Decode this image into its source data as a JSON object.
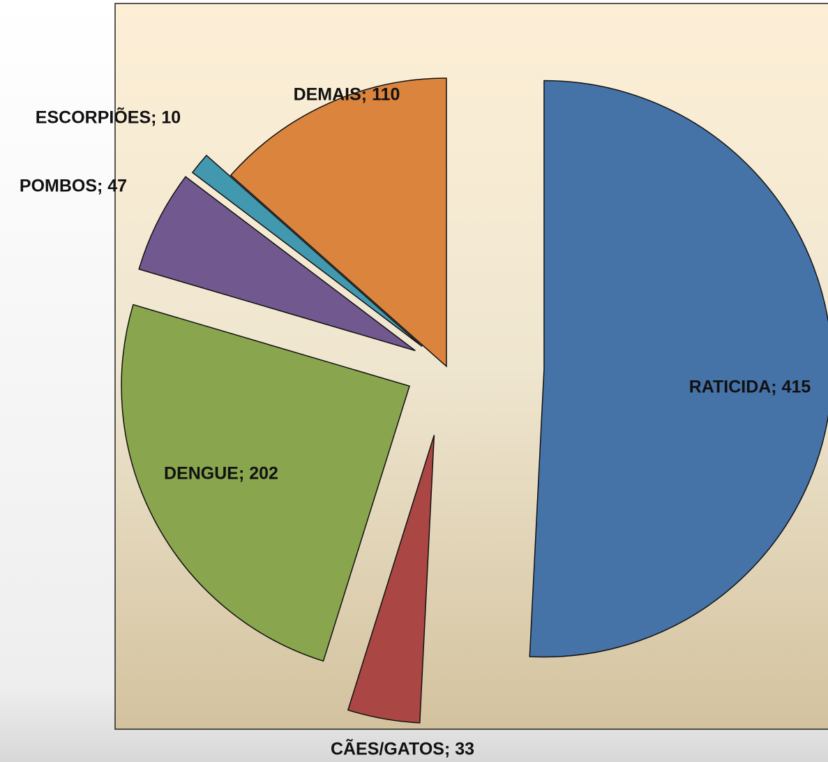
{
  "chart_data": {
    "type": "pie",
    "categories": [
      "RATICIDA",
      "CÃES/GATOS",
      "DENGUE",
      "POMBOS",
      "ESCORPIÕES",
      "DEMAIS"
    ],
    "values": [
      415,
      33,
      202,
      47,
      10,
      110
    ],
    "value_labels": [
      "RATICIDA; 415",
      "CÃES/GATOS; 33",
      "DENGUE; 202",
      "POMBOS; 47",
      "ESCORPIÕES; 10",
      "DEMAIS; 110"
    ],
    "colors": [
      "#4572a7",
      "#aa4643",
      "#89a54e",
      "#71588f",
      "#4198af",
      "#db843d"
    ]
  }
}
